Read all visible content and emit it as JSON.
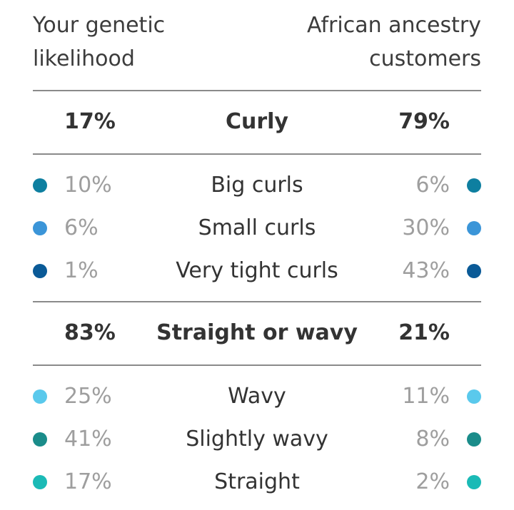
{
  "header": {
    "left_line1": "Your genetic",
    "left_line2": "likelihood",
    "right_line1": "African ancestry",
    "right_line2": "customers"
  },
  "groups": [
    {
      "label": "Curly",
      "yours": "17%",
      "ancestry": "79%",
      "items": [
        {
          "label": "Big curls",
          "yours": "10%",
          "ancestry": "6%",
          "color": "#0e7fa0"
        },
        {
          "label": "Small curls",
          "yours": "6%",
          "ancestry": "30%",
          "color": "#3b95d8"
        },
        {
          "label": "Very tight curls",
          "yours": "1%",
          "ancestry": "43%",
          "color": "#0a5a97"
        }
      ]
    },
    {
      "label": "Straight or wavy",
      "yours": "83%",
      "ancestry": "21%",
      "items": [
        {
          "label": "Wavy",
          "yours": "25%",
          "ancestry": "11%",
          "color": "#5ac9ec"
        },
        {
          "label": "Slightly wavy",
          "yours": "41%",
          "ancestry": "8%",
          "color": "#1a8c8a"
        },
        {
          "label": "Straight",
          "yours": "17%",
          "ancestry": "2%",
          "color": "#1bbab6"
        }
      ]
    }
  ]
}
